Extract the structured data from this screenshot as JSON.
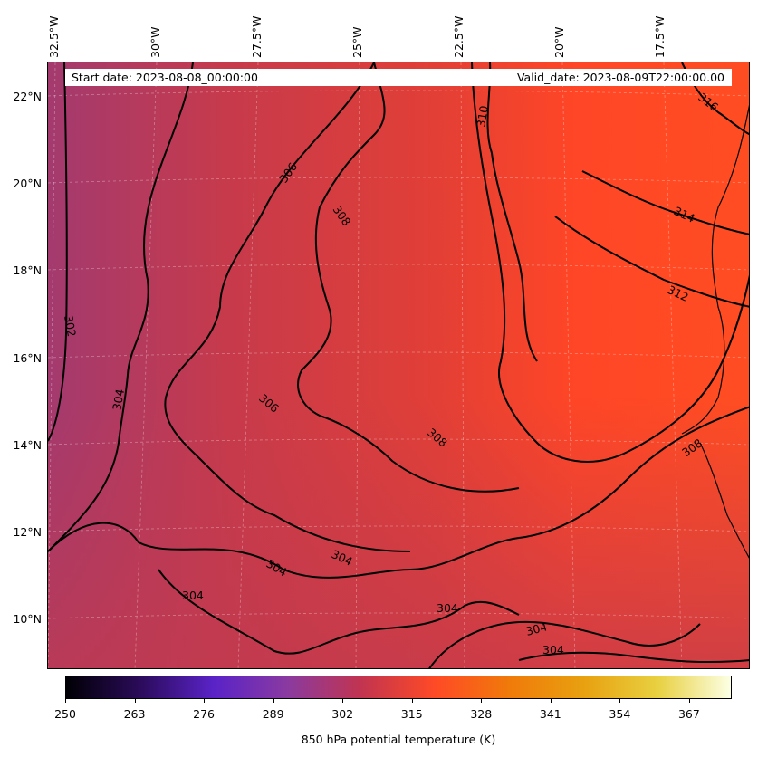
{
  "map": {
    "title_left": "Start date: 2023-08-08_00:00:00",
    "title_right": "Valid_date: 2023-08-09T22:00:00.00",
    "longitude_labels": [
      "32.5°W",
      "30°W",
      "27.5°W",
      "25°W",
      "22.5°W",
      "20°W",
      "17.5°W"
    ],
    "latitude_labels": [
      "22°N",
      "20°N",
      "18°N",
      "16°N",
      "14°N",
      "12°N",
      "10°N"
    ],
    "contour_labels": [
      "302",
      "304",
      "304",
      "304",
      "304",
      "304",
      "304",
      "304",
      "306",
      "306",
      "308",
      "308",
      "308",
      "310",
      "312",
      "314",
      "316"
    ]
  },
  "colorbar": {
    "label": "850 hPa potential temperature (K)",
    "ticks": [
      "250",
      "263",
      "276",
      "289",
      "302",
      "315",
      "328",
      "341",
      "354",
      "367"
    ],
    "colors": [
      "#000004",
      "#2b0b5a",
      "#5a23c8",
      "#8a3aa0",
      "#c2344f",
      "#ff4a26",
      "#f07a0a",
      "#e8a010",
      "#e8d040",
      "#fcffe4"
    ]
  },
  "field": {
    "west_color": "#a33a6f",
    "mid_color": "#c63a4c",
    "center_color": "#e23f36",
    "east_color": "#ff4a24",
    "contour_color": "#000000"
  }
}
